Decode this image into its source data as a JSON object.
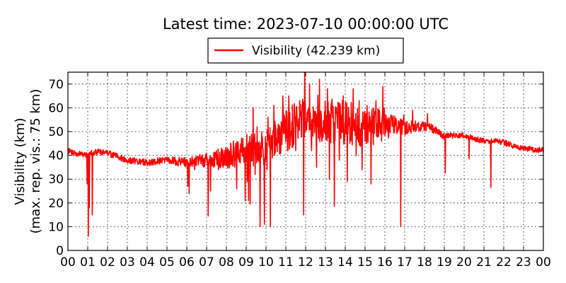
{
  "chart_data": {
    "type": "line",
    "title": "Latest time: 2023-07-10 00:00:00 UTC",
    "ylabel": "Visibility (km)",
    "ylabel_sub": "(max. rep. vis.: 75 km)",
    "xlabel": "",
    "xlim": [
      0,
      24
    ],
    "ylim": [
      0,
      75
    ],
    "grid": true,
    "legend_position": "top-center",
    "x_tick_labels": [
      "00",
      "01",
      "02",
      "03",
      "04",
      "05",
      "06",
      "07",
      "08",
      "09",
      "10",
      "11",
      "12",
      "13",
      "14",
      "15",
      "16",
      "17",
      "18",
      "19",
      "20",
      "21",
      "22",
      "23",
      "00"
    ],
    "y_ticks": [
      0,
      10,
      20,
      30,
      40,
      50,
      60,
      70
    ],
    "series": [
      {
        "name": "Visibility (42.239 km)",
        "color": "#ff0000",
        "baseline": {
          "x": [
            0,
            0.5,
            1.0,
            1.5,
            2.0,
            2.5,
            3.0,
            3.5,
            4.0,
            4.5,
            5.0,
            5.5,
            6.0,
            6.5,
            7.0,
            7.5,
            8.0,
            8.5,
            9.0,
            9.5,
            10.0,
            10.5,
            11.0,
            11.5,
            12.0,
            12.5,
            13.0,
            13.5,
            14.0,
            14.5,
            15.0,
            15.5,
            16.0,
            16.5,
            17.0,
            17.5,
            18.0,
            18.5,
            19.0,
            19.5,
            20.0,
            20.5,
            21.0,
            21.5,
            22.0,
            22.5,
            23.0,
            23.5,
            24.0
          ],
          "y": [
            42,
            40.5,
            40.5,
            41.5,
            41,
            39.5,
            38,
            37.5,
            37,
            37.5,
            38,
            37.5,
            37,
            37.5,
            38,
            38.5,
            39.5,
            41,
            42,
            43,
            44,
            47,
            50.5,
            53,
            55,
            55.5,
            55,
            54.5,
            54,
            53,
            52.5,
            52.5,
            53,
            52.5,
            51.5,
            52,
            52,
            51,
            48,
            48.5,
            48.5,
            47,
            46,
            46,
            45.5,
            44,
            43,
            42.5,
            42.2
          ]
        },
        "noise": {
          "x": [
            0,
            5,
            7,
            8,
            9,
            10,
            11,
            12,
            13,
            14,
            15,
            16,
            16.5,
            17,
            17.5,
            18,
            19,
            19.5,
            24
          ],
          "amp": [
            1.2,
            1.5,
            3,
            5,
            7,
            8,
            9,
            10,
            10,
            10,
            9,
            7,
            4,
            3,
            2.5,
            2,
            1.5,
            1.2,
            1.2
          ]
        },
        "spikes": [
          {
            "x": 0.97,
            "y": 28
          },
          {
            "x": 1.03,
            "y": 6
          },
          {
            "x": 1.08,
            "y": 18
          },
          {
            "x": 1.23,
            "y": 15
          },
          {
            "x": 6.05,
            "y": 27
          },
          {
            "x": 6.12,
            "y": 24
          },
          {
            "x": 7.08,
            "y": 14.5
          },
          {
            "x": 7.2,
            "y": 25
          },
          {
            "x": 8.52,
            "y": 26
          },
          {
            "x": 8.95,
            "y": 21
          },
          {
            "x": 9.05,
            "y": 29
          },
          {
            "x": 9.12,
            "y": 21
          },
          {
            "x": 9.2,
            "y": 19.5
          },
          {
            "x": 9.45,
            "y": 32
          },
          {
            "x": 9.7,
            "y": 10
          },
          {
            "x": 9.92,
            "y": 11
          },
          {
            "x": 10.05,
            "y": 34
          },
          {
            "x": 10.22,
            "y": 10
          },
          {
            "x": 10.55,
            "y": 45
          },
          {
            "x": 11.5,
            "y": 42
          },
          {
            "x": 11.9,
            "y": 15
          },
          {
            "x": 12.3,
            "y": 42
          },
          {
            "x": 12.55,
            "y": 35
          },
          {
            "x": 12.7,
            "y": 29
          },
          {
            "x": 13.2,
            "y": 30
          },
          {
            "x": 13.45,
            "y": 18.5
          },
          {
            "x": 13.7,
            "y": 38
          },
          {
            "x": 14.1,
            "y": 29
          },
          {
            "x": 14.55,
            "y": 40
          },
          {
            "x": 14.85,
            "y": 34
          },
          {
            "x": 15.3,
            "y": 28
          },
          {
            "x": 15.55,
            "y": 44
          },
          {
            "x": 16.8,
            "y": 10
          },
          {
            "x": 19.05,
            "y": 32.5
          },
          {
            "x": 20.25,
            "y": 38.5
          },
          {
            "x": 21.35,
            "y": 26.5
          },
          {
            "x": 6.4,
            "y": 34
          },
          {
            "x": 7.6,
            "y": 34
          },
          {
            "x": 8.2,
            "y": 36
          },
          {
            "x": 9.35,
            "y": 60
          },
          {
            "x": 9.55,
            "y": 52
          },
          {
            "x": 10.1,
            "y": 56
          },
          {
            "x": 10.4,
            "y": 61
          },
          {
            "x": 10.85,
            "y": 65
          },
          {
            "x": 11.15,
            "y": 65
          },
          {
            "x": 11.7,
            "y": 63
          },
          {
            "x": 11.95,
            "y": 75
          },
          {
            "x": 12.2,
            "y": 70
          },
          {
            "x": 12.7,
            "y": 72
          },
          {
            "x": 13.1,
            "y": 68
          },
          {
            "x": 13.3,
            "y": 58
          },
          {
            "x": 13.9,
            "y": 65
          },
          {
            "x": 14.4,
            "y": 68
          },
          {
            "x": 14.7,
            "y": 63
          },
          {
            "x": 15.1,
            "y": 61
          },
          {
            "x": 15.55,
            "y": 63
          },
          {
            "x": 15.9,
            "y": 69
          },
          {
            "x": 16.3,
            "y": 57
          },
          {
            "x": 16.95,
            "y": 57
          },
          {
            "x": 17.4,
            "y": 59
          },
          {
            "x": 18.15,
            "y": 57.5
          }
        ]
      }
    ]
  }
}
